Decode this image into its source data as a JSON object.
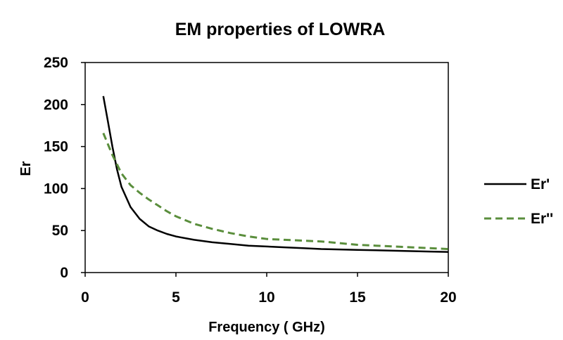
{
  "chart_data": {
    "type": "line",
    "title": "EM properties of LOWRA",
    "xlabel": "Frequency ( GHz)",
    "ylabel": "Er",
    "xlim": [
      0,
      20
    ],
    "ylim": [
      0,
      250
    ],
    "xticks": [
      "0",
      "5",
      "10",
      "15",
      "20"
    ],
    "yticks": [
      "0",
      "50",
      "100",
      "150",
      "200",
      "250"
    ],
    "grid": false,
    "legend_position": "right",
    "series": [
      {
        "name": "Er'",
        "color": "#000000",
        "style": "solid",
        "x": [
          1,
          1.25,
          1.5,
          1.75,
          2,
          2.5,
          3,
          3.5,
          4,
          4.5,
          5,
          6,
          7,
          8,
          9,
          10,
          11,
          12,
          13,
          14,
          15,
          16,
          17,
          18,
          19,
          20
        ],
        "y": [
          210,
          180,
          150,
          123,
          102,
          78,
          64,
          55,
          50,
          46,
          43,
          39,
          36,
          34,
          32,
          31,
          30,
          29,
          28,
          27.5,
          27,
          26.5,
          26,
          25.5,
          25,
          24.5
        ]
      },
      {
        "name": "Er''",
        "color": "#5a8e3c",
        "style": "dashed",
        "x": [
          1,
          1.5,
          2,
          2.5,
          3,
          3.5,
          4,
          4.5,
          5,
          6,
          7,
          8,
          9,
          10,
          11,
          12,
          13,
          14,
          15,
          16,
          17,
          18,
          19,
          20
        ],
        "y": [
          166,
          140,
          118,
          104,
          95,
          87,
          80,
          73,
          67,
          58,
          52,
          47,
          43,
          40,
          39,
          38,
          37,
          35,
          33,
          32,
          31,
          30,
          29,
          28
        ]
      }
    ]
  }
}
